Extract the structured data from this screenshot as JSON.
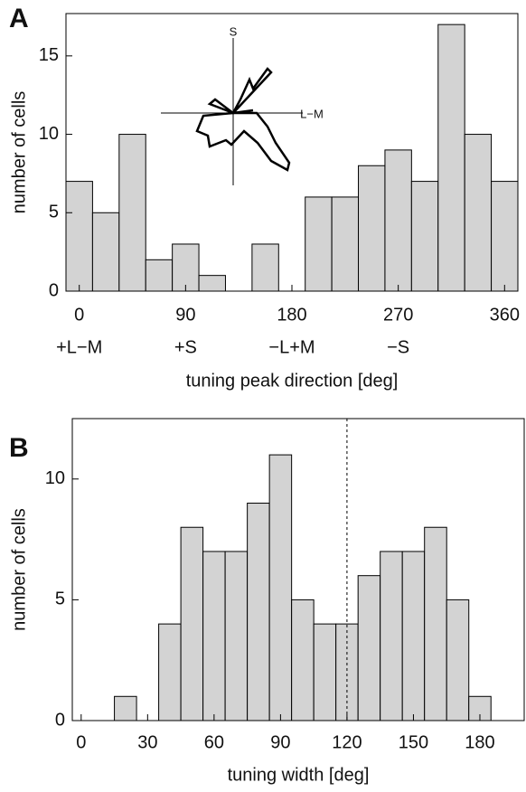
{
  "chart_data": [
    {
      "type": "histogram",
      "panel_label": "A",
      "x_label": "tuning peak direction [deg]",
      "y_label": "number of cells",
      "bins": [
        -11.25,
        11.25,
        33.75,
        56.25,
        78.75,
        101.25,
        123.75,
        146.25,
        168.75,
        191.25,
        213.75,
        236.25,
        258.75,
        281.25,
        303.75,
        326.25,
        348.75,
        371.25
      ],
      "counts": [
        7,
        5,
        10,
        2,
        3,
        1,
        0,
        3,
        0,
        6,
        6,
        8,
        9,
        7,
        17,
        10,
        7
      ],
      "color": "#d3d3d3",
      "xlim": [
        -11.25,
        371.25
      ],
      "xticks": [
        0,
        90,
        180,
        270,
        360
      ],
      "xtick_sublabels": [
        {
          "value": 0,
          "label": "+L−M"
        },
        {
          "value": 90,
          "label": "+S"
        },
        {
          "value": 180,
          "label": "−L+M"
        },
        {
          "value": 270,
          "label": "−S"
        }
      ],
      "ylim": [
        0,
        17.7
      ],
      "yticks": [
        0,
        5,
        10,
        15
      ],
      "inset_labels": [
        "S",
        "L−M"
      ]
    },
    {
      "type": "histogram",
      "panel_label": "B",
      "x_label": "tuning width [deg]",
      "y_label": "number of cells",
      "bins": [
        15,
        25,
        35,
        45,
        55,
        65,
        75,
        85,
        95,
        105,
        115,
        125,
        135,
        145,
        155,
        165,
        175,
        185
      ],
      "counts": [
        1,
        0,
        4,
        8,
        7,
        7,
        9,
        11,
        5,
        4,
        4,
        6,
        7,
        7,
        8,
        5,
        1
      ],
      "color": "#d3d3d3",
      "xlim": [
        -4,
        200
      ],
      "xticks": [
        0,
        30,
        60,
        90,
        120,
        150,
        180
      ],
      "ylim": [
        0,
        12.5
      ],
      "yticks": [
        0,
        5,
        10
      ],
      "reference_line": 120
    }
  ]
}
